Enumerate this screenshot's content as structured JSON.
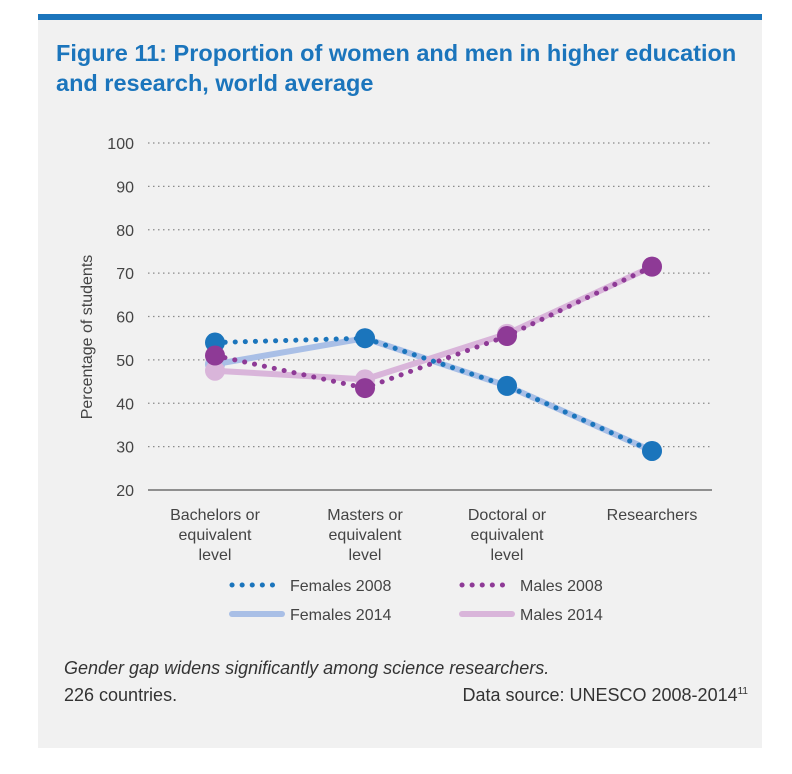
{
  "figure": {
    "title": "Figure 11: Proportion of women and men in higher education and research, world average",
    "caption": "Gender gap widens significantly among science researchers.",
    "countries": "226 countries.",
    "source": "Data source: UNESCO 2008-2014",
    "source_footnote": "11"
  },
  "chart_data": {
    "type": "line",
    "title": "Figure 11: Proportion of women and men in higher education and research, world average",
    "xlabel": "",
    "ylabel": "Percentage of students",
    "ylim": [
      20,
      100
    ],
    "yticks": [
      20,
      30,
      40,
      50,
      60,
      70,
      80,
      90,
      100
    ],
    "grid": true,
    "legend_position": "bottom",
    "categories": [
      [
        "Bachelors or",
        "equivalent",
        "level"
      ],
      [
        "Masters or",
        "equivalent",
        "level"
      ],
      [
        "Doctoral or",
        "equivalent",
        "level"
      ],
      [
        "Researchers"
      ]
    ],
    "series": [
      {
        "name": "Females 2014",
        "values": [
          49,
          55,
          44,
          29
        ],
        "color": "#a9bfe6",
        "style": "solid"
      },
      {
        "name": "Males 2014",
        "values": [
          47.5,
          45.5,
          56,
          71.5
        ],
        "color": "#d9b5da",
        "style": "solid"
      },
      {
        "name": "Females 2008",
        "values": [
          54,
          55,
          44,
          29
        ],
        "color": "#1b75bc",
        "style": "dotted"
      },
      {
        "name": "Males 2008",
        "values": [
          51,
          43.5,
          55.5,
          71.5
        ],
        "color": "#8e3a96",
        "style": "dotted"
      }
    ],
    "legend_order": [
      "Females 2008",
      "Males 2008",
      "Females 2014",
      "Males 2014"
    ]
  }
}
